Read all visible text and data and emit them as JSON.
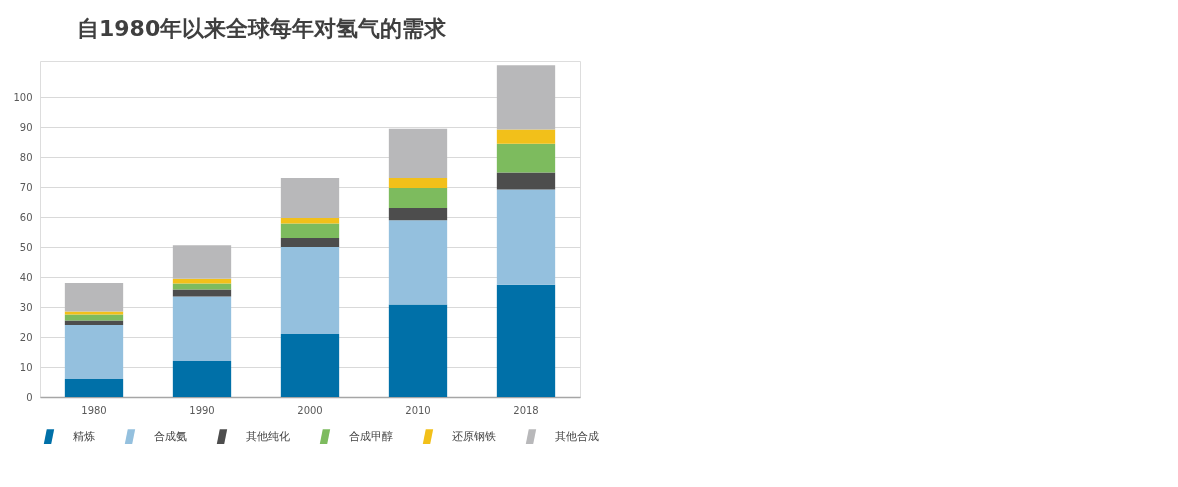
{
  "chart_data": {
    "type": "bar",
    "title": "自1980年以来全球每年对氢气的需求",
    "categories": [
      "1980",
      "1990",
      "2000",
      "2010",
      "2018"
    ],
    "stacked": true,
    "series": [
      {
        "name": "精炼",
        "color": "#0070a8",
        "values": [
          6,
          12,
          21,
          30.8,
          37.4
        ]
      },
      {
        "name": "合成氨",
        "color": "#94c0de",
        "values": [
          18,
          21.5,
          29,
          28.1,
          31.8
        ]
      },
      {
        "name": "其他纯化",
        "color": "#4d4d4d",
        "values": [
          1.5,
          2.3,
          3,
          4.1,
          5.6
        ]
      },
      {
        "name": "合成甲醇",
        "color": "#7dbb5e",
        "values": [
          2,
          2,
          4.8,
          6.7,
          9.6
        ]
      },
      {
        "name": "还原钢铁",
        "color": "#f2c01a",
        "values": [
          1,
          1.6,
          1.9,
          3.3,
          4.8
        ]
      },
      {
        "name": "其他合成",
        "color": "#b8b8ba",
        "values": [
          9.5,
          11.2,
          13.3,
          16.4,
          21.4
        ]
      }
    ],
    "ylim": [
      0,
      112
    ],
    "yticks": [
      0,
      10,
      20,
      30,
      40,
      50,
      60,
      70,
      80,
      90,
      100
    ],
    "grid": "y",
    "legend": "bottom"
  }
}
